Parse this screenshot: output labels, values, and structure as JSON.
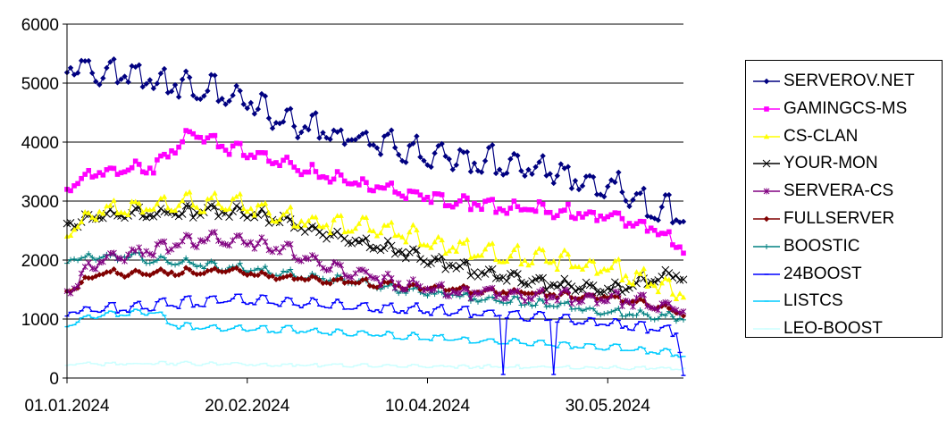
{
  "chart_data": {
    "type": "line",
    "title": "",
    "xlabel": "",
    "ylabel": "",
    "ylim": [
      0,
      6000
    ],
    "yticks": [
      0,
      1000,
      2000,
      3000,
      4000,
      5000,
      6000
    ],
    "x_start": "01.01.2024",
    "x_end": "20.06.2024",
    "xticks": [
      "01.01.2024",
      "20.02.2024",
      "10.04.2024",
      "30.05.2024"
    ],
    "grid": "horizontal",
    "legend": "right",
    "series": [
      {
        "name": "SERVEROV.NET",
        "color": "#000080",
        "marker": "diamond",
        "weekly_amplitude": 250,
        "noise": 120,
        "keypoints": [
          [
            "01.01.2024",
            5200
          ],
          [
            "15.01.2024",
            5100
          ],
          [
            "01.02.2024",
            4900
          ],
          [
            "15.02.2024",
            4800
          ],
          [
            "01.03.2024",
            4300
          ],
          [
            "15.03.2024",
            4050
          ],
          [
            "01.04.2024",
            3850
          ],
          [
            "15.04.2024",
            3700
          ],
          [
            "01.05.2024",
            3600
          ],
          [
            "15.05.2024",
            3450
          ],
          [
            "01.06.2024",
            3150
          ],
          [
            "10.06.2024",
            2900
          ],
          [
            "20.06.2024",
            2700
          ]
        ]
      },
      {
        "name": "GAMINGCS-MS",
        "color": "#FF00FF",
        "marker": "square",
        "weekly_amplitude": 120,
        "noise": 60,
        "keypoints": [
          [
            "01.01.2024",
            3200
          ],
          [
            "10.01.2024",
            3450
          ],
          [
            "25.01.2024",
            3550
          ],
          [
            "05.02.2024",
            4150
          ],
          [
            "15.02.2024",
            3850
          ],
          [
            "01.03.2024",
            3600
          ],
          [
            "15.03.2024",
            3350
          ],
          [
            "01.04.2024",
            3150
          ],
          [
            "15.04.2024",
            3000
          ],
          [
            "01.05.2024",
            2850
          ],
          [
            "15.05.2024",
            2800
          ],
          [
            "01.06.2024",
            2700
          ],
          [
            "10.06.2024",
            2550
          ],
          [
            "20.06.2024",
            2200
          ]
        ]
      },
      {
        "name": "CS-CLAN",
        "color": "#FFFF00",
        "marker": "triangle",
        "weekly_amplitude": 180,
        "noise": 70,
        "keypoints": [
          [
            "01.01.2024",
            2400
          ],
          [
            "10.01.2024",
            2800
          ],
          [
            "15.02.2024",
            2950
          ],
          [
            "01.03.2024",
            2700
          ],
          [
            "15.03.2024",
            2550
          ],
          [
            "01.04.2024",
            2450
          ],
          [
            "15.04.2024",
            2200
          ],
          [
            "01.05.2024",
            2050
          ],
          [
            "15.05.2024",
            1950
          ],
          [
            "01.06.2024",
            1800
          ],
          [
            "20.06.2024",
            1400
          ]
        ]
      },
      {
        "name": "YOUR-MON",
        "color": "#000000",
        "marker": "x",
        "weekly_amplitude": 100,
        "noise": 60,
        "keypoints": [
          [
            "01.01.2024",
            2600
          ],
          [
            "15.01.2024",
            2750
          ],
          [
            "15.02.2024",
            2800
          ],
          [
            "01.03.2024",
            2650
          ],
          [
            "15.03.2024",
            2400
          ],
          [
            "01.04.2024",
            2150
          ],
          [
            "15.04.2024",
            1900
          ],
          [
            "01.05.2024",
            1700
          ],
          [
            "15.05.2024",
            1550
          ],
          [
            "01.06.2024",
            1500
          ],
          [
            "20.06.2024",
            1750
          ]
        ]
      },
      {
        "name": "SERVERA-CS",
        "color": "#800080",
        "marker": "star",
        "weekly_amplitude": 120,
        "noise": 60,
        "keypoints": [
          [
            "01.01.2024",
            1450
          ],
          [
            "10.01.2024",
            1950
          ],
          [
            "25.01.2024",
            2150
          ],
          [
            "10.02.2024",
            2350
          ],
          [
            "20.02.2024",
            2300
          ],
          [
            "01.03.2024",
            2150
          ],
          [
            "15.03.2024",
            1850
          ],
          [
            "01.04.2024",
            1600
          ],
          [
            "15.04.2024",
            1450
          ],
          [
            "01.05.2024",
            1400
          ],
          [
            "01.06.2024",
            1300
          ],
          [
            "20.06.2024",
            1150
          ]
        ]
      },
      {
        "name": "FULLSERVER",
        "color": "#800000",
        "marker": "diamond",
        "weekly_amplitude": 60,
        "noise": 35,
        "keypoints": [
          [
            "01.01.2024",
            1450
          ],
          [
            "10.01.2024",
            1750
          ],
          [
            "15.02.2024",
            1800
          ],
          [
            "01.03.2024",
            1700
          ],
          [
            "01.04.2024",
            1550
          ],
          [
            "01.05.2024",
            1450
          ],
          [
            "01.06.2024",
            1350
          ],
          [
            "20.06.2024",
            1100
          ]
        ]
      },
      {
        "name": "BOOSTIC",
        "color": "#008080",
        "marker": "plus",
        "weekly_amplitude": 70,
        "noise": 45,
        "keypoints": [
          [
            "01.01.2024",
            2000
          ],
          [
            "15.01.2024",
            2050
          ],
          [
            "15.02.2024",
            1850
          ],
          [
            "01.03.2024",
            1750
          ],
          [
            "01.04.2024",
            1500
          ],
          [
            "01.05.2024",
            1300
          ],
          [
            "01.06.2024",
            1100
          ],
          [
            "20.06.2024",
            1000
          ]
        ]
      },
      {
        "name": "24BOOST",
        "color": "#0000FF",
        "marker": "dash",
        "weekly_amplitude": 110,
        "noise": 35,
        "keypoints": [
          [
            "01.01.2024",
            1100
          ],
          [
            "15.01.2024",
            1150
          ],
          [
            "15.02.2024",
            1300
          ],
          [
            "01.03.2024",
            1250
          ],
          [
            "01.04.2024",
            1150
          ],
          [
            "01.05.2024",
            1050
          ],
          [
            "01.06.2024",
            900
          ],
          [
            "18.06.2024",
            750
          ],
          [
            "20.06.2024",
            100
          ]
        ]
      },
      {
        "name": "LISTCS",
        "color": "#00CCFF",
        "marker": "dash",
        "weekly_amplitude": 70,
        "noise": 25,
        "keypoints": [
          [
            "01.01.2024",
            900
          ],
          [
            "10.01.2024",
            1050
          ],
          [
            "25.01.2024",
            1100
          ],
          [
            "01.02.2024",
            850
          ],
          [
            "01.03.2024",
            800
          ],
          [
            "01.04.2024",
            700
          ],
          [
            "01.05.2024",
            600
          ],
          [
            "01.06.2024",
            500
          ],
          [
            "20.06.2024",
            380
          ]
        ]
      },
      {
        "name": "LEO-BOOST",
        "color": "#CCFFFF",
        "marker": "dash",
        "weekly_amplitude": 25,
        "noise": 20,
        "keypoints": [
          [
            "01.01.2024",
            230
          ],
          [
            "01.02.2024",
            240
          ],
          [
            "01.03.2024",
            220
          ],
          [
            "01.04.2024",
            200
          ],
          [
            "01.05.2024",
            180
          ],
          [
            "01.06.2024",
            170
          ],
          [
            "20.06.2024",
            150
          ]
        ]
      }
    ],
    "dropouts": [
      {
        "series": "24BOOST",
        "dates": [
          "01.05.2024",
          "15.05.2024"
        ],
        "value": 60
      },
      {
        "series": "SERVEROV.NET",
        "dates": [],
        "value": 0
      }
    ]
  }
}
